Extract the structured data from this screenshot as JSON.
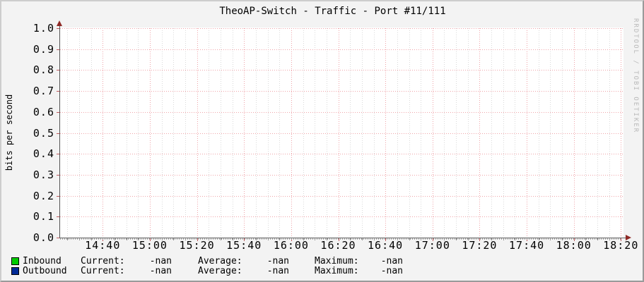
{
  "title": "TheoAP-Switch - Traffic - Port #11/111",
  "watermark": "RRDTOOL / TOBI OETIKER",
  "y_axis": {
    "label": "bits per second",
    "ticks": [
      "1.0",
      "0.9",
      "0.8",
      "0.7",
      "0.6",
      "0.5",
      "0.4",
      "0.3",
      "0.2",
      "0.1",
      "0.0"
    ]
  },
  "x_axis": {
    "ticks": [
      "14:40",
      "15:00",
      "15:20",
      "15:40",
      "16:00",
      "16:20",
      "16:40",
      "17:00",
      "17:20",
      "17:40",
      "18:00",
      "18:20"
    ]
  },
  "legend": {
    "columns": [
      "Current:",
      "Average:",
      "Maximum:"
    ],
    "rows": [
      {
        "label": "Inbound",
        "color": "#00CC00",
        "current": "-nan",
        "average": "-nan",
        "maximum": "-nan"
      },
      {
        "label": "Outbound",
        "color": "#002A97",
        "current": "-nan",
        "average": "-nan",
        "maximum": "-nan"
      }
    ]
  },
  "colors": {
    "background": "#F3F3F3",
    "canvas": "#FFFFFF",
    "major_grid": "#EFA3A8",
    "minor_grid": "#D9D9D9",
    "axis": "#5A5A5A",
    "arrow": "#8F2A26",
    "major_tick": "#C05A5E",
    "minor_tick": "#8C8C8C",
    "watermark": "#B9B9B9"
  },
  "chart_data": {
    "type": "line",
    "title": "TheoAP-Switch - Traffic - Port #11/111",
    "xlabel": "",
    "ylabel": "bits per second",
    "ylim": [
      0.0,
      1.0
    ],
    "y_ticks": [
      1.0,
      0.9,
      0.8,
      0.7,
      0.6,
      0.5,
      0.4,
      0.3,
      0.2,
      0.1,
      0.0
    ],
    "x_ticks": [
      "14:40",
      "15:00",
      "15:20",
      "15:40",
      "16:00",
      "16:20",
      "16:40",
      "17:00",
      "17:20",
      "17:40",
      "18:00",
      "18:20"
    ],
    "grid": true,
    "legend_position": "bottom-left",
    "series": [
      {
        "name": "Inbound",
        "color": "#00CC00",
        "values": [],
        "stats": {
          "current": "-nan",
          "average": "-nan",
          "maximum": "-nan"
        }
      },
      {
        "name": "Outbound",
        "color": "#002A97",
        "values": [],
        "stats": {
          "current": "-nan",
          "average": "-nan",
          "maximum": "-nan"
        }
      }
    ],
    "note": "No data plotted; all series values are -nan (empty graph)"
  }
}
